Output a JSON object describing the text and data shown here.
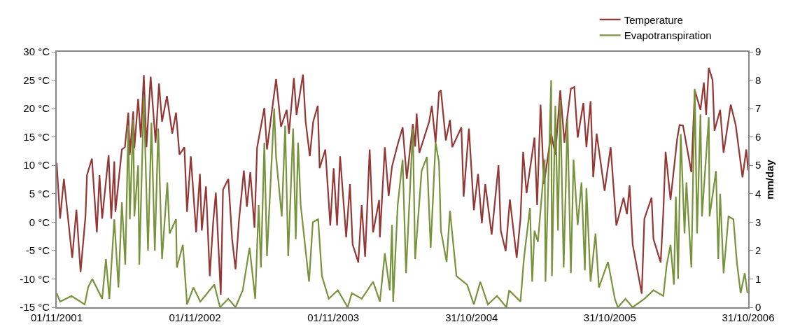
{
  "chart_data": {
    "type": "line",
    "y2label": "mm/day",
    "xlim": [
      "2001-11-01",
      "2006-10-31"
    ],
    "xticks": [
      {
        "value": "2001-11-01",
        "label": "01/11/2001"
      },
      {
        "value": "2002-11-01",
        "label": "01/11/2002"
      },
      {
        "value": "2003-11-01",
        "label": "01/11/2003"
      },
      {
        "value": "2004-10-31",
        "label": "31/10/2004"
      },
      {
        "value": "2005-10-31",
        "label": "31/10/2005"
      },
      {
        "value": "2006-10-31",
        "label": "31/10/2006"
      }
    ],
    "ylim": [
      -15,
      30
    ],
    "yticks": [
      {
        "value": -15,
        "label": "-15 °C"
      },
      {
        "value": -10,
        "label": "-10 °C"
      },
      {
        "value": -5,
        "label": "-5 °C"
      },
      {
        "value": 0,
        "label": "0 °C"
      },
      {
        "value": 5,
        "label": "5 °C"
      },
      {
        "value": 10,
        "label": "10 °C"
      },
      {
        "value": 15,
        "label": "15 °C"
      },
      {
        "value": 20,
        "label": "20 °C"
      },
      {
        "value": 25,
        "label": "25 °C"
      },
      {
        "value": 30,
        "label": "30 °C"
      }
    ],
    "y2lim": [
      0,
      9
    ],
    "y2ticks": [
      0,
      1,
      2,
      3,
      4,
      5,
      6,
      7,
      8,
      9
    ],
    "legend": "top right",
    "marker": "none",
    "line_style": "solid",
    "series": [
      {
        "name": "Temperature",
        "color": "#953735",
        "x": [
          "2001-11-01",
          "2001-11-10",
          "2001-11-20",
          "2001-12-12",
          "2001-12-23",
          "2002-01-03",
          "2002-01-16",
          "2002-01-20",
          "2002-02-02",
          "2002-02-15",
          "2002-02-22",
          "2002-03-01",
          "2002-03-18",
          "2002-03-25",
          "2002-04-02",
          "2002-04-05",
          "2002-04-22",
          "2002-04-30",
          "2002-05-09",
          "2002-05-13",
          "2002-05-22",
          "2002-05-25",
          "2002-06-04",
          "2002-06-11",
          "2002-06-19",
          "2002-06-26",
          "2002-07-07",
          "2002-07-20",
          "2002-07-29",
          "2002-08-06",
          "2002-08-19",
          "2002-09-02",
          "2002-09-12",
          "2002-09-21",
          "2002-10-04",
          "2002-10-11",
          "2002-10-21",
          "2002-11-04",
          "2002-11-14",
          "2002-11-19",
          "2002-11-30",
          "2002-12-10",
          "2002-12-19",
          "2002-12-26",
          "2003-01-08",
          "2003-01-14",
          "2003-01-28",
          "2003-02-07",
          "2003-02-16",
          "2003-02-25",
          "2003-03-10",
          "2003-03-18",
          "2003-03-27",
          "2003-04-07",
          "2003-04-14",
          "2003-05-03",
          "2003-05-10",
          "2003-06-03",
          "2003-06-16",
          "2003-07-01",
          "2003-07-07",
          "2003-07-20",
          "2003-07-27",
          "2003-08-13",
          "2003-08-20",
          "2003-08-31",
          "2003-09-09",
          "2003-09-21",
          "2003-09-26",
          "2003-10-11",
          "2003-10-24",
          "2003-11-02",
          "2003-11-11",
          "2003-11-19",
          "2003-12-05",
          "2003-12-15",
          "2003-12-22",
          "2004-01-06",
          "2004-01-15",
          "2004-01-24",
          "2004-02-05",
          "2004-02-14",
          "2004-03-01",
          "2004-03-03",
          "2004-03-16",
          "2004-03-26",
          "2004-04-04",
          "2004-04-19",
          "2004-05-02",
          "2004-05-13",
          "2004-05-29",
          "2004-06-04",
          "2004-06-08",
          "2004-06-15",
          "2004-07-11",
          "2004-07-18",
          "2004-07-28",
          "2004-08-06",
          "2004-08-11",
          "2004-08-24",
          "2004-09-04",
          "2004-09-10",
          "2004-10-04",
          "2004-10-10",
          "2004-10-24",
          "2004-11-06",
          "2004-11-17",
          "2004-11-27",
          "2004-12-06",
          "2004-12-23",
          "2005-01-10",
          "2005-01-16",
          "2005-01-29",
          "2005-02-09",
          "2005-02-27",
          "2005-03-09",
          "2005-03-16",
          "2005-03-25",
          "2005-04-15",
          "2005-04-22",
          "2005-05-01",
          "2005-05-10",
          "2005-05-29",
          "2005-06-09",
          "2005-06-22",
          "2005-07-03",
          "2005-07-09",
          "2005-07-20",
          "2005-07-29",
          "2005-08-07",
          "2005-08-22",
          "2005-08-30",
          "2005-09-10",
          "2005-09-17",
          "2005-09-26",
          "2005-10-17",
          "2005-11-02",
          "2005-11-17",
          "2005-12-06",
          "2005-12-15",
          "2005-12-22",
          "2005-12-30",
          "2006-01-23",
          "2006-01-30",
          "2006-02-18",
          "2006-02-23",
          "2006-03-14",
          "2006-03-21",
          "2006-03-27",
          "2006-04-09",
          "2006-04-27",
          "2006-05-03",
          "2006-05-12",
          "2006-06-03",
          "2006-06-12",
          "2006-06-27",
          "2006-07-06",
          "2006-07-12",
          "2006-07-19",
          "2006-07-29",
          "2006-08-03",
          "2006-08-18",
          "2006-08-27",
          "2006-09-15",
          "2006-09-28",
          "2006-10-16",
          "2006-10-26",
          "2006-10-31"
        ],
        "values": [
          10.4,
          0.6,
          7.6,
          -6.3,
          2.2,
          -8.8,
          1,
          8.3,
          11.2,
          -1.8,
          8.3,
          0.6,
          11.8,
          0.6,
          10.7,
          1.8,
          12.8,
          13.2,
          19.3,
          11.9,
          19.5,
          13,
          21.7,
          14.9,
          25.9,
          13.2,
          25.6,
          14,
          24.4,
          17.7,
          22.2,
          15.6,
          19.3,
          11.9,
          13.2,
          1.8,
          11.6,
          -1.8,
          8.5,
          -1.5,
          6.3,
          -9.5,
          0,
          5.2,
          -12.8,
          5.7,
          7.6,
          -3,
          -8.3,
          0.2,
          9.1,
          2.7,
          8.8,
          -1,
          13.2,
          20.1,
          12.8,
          25.2,
          16.8,
          19.8,
          15.6,
          25.4,
          18.9,
          26,
          17.7,
          11.6,
          17.7,
          20.5,
          9.5,
          12.8,
          -0.6,
          9.5,
          -0.6,
          11.6,
          -2.7,
          6.7,
          -3.9,
          -7.1,
          3,
          -6.1,
          12.8,
          -1.8,
          3.9,
          -2.7,
          13.2,
          4.6,
          9.8,
          13.7,
          16.7,
          7.6,
          17.3,
          13.3,
          19.1,
          12.2,
          17.7,
          20.5,
          14,
          22.9,
          23.2,
          14.4,
          18,
          13.2,
          16.7,
          4.5,
          16.5,
          2.1,
          8.5,
          -0.2,
          6.7,
          -2.2,
          10,
          -1.5,
          -5.1,
          4,
          -6.3,
          0.6,
          12.4,
          5.1,
          14.9,
          3,
          20.7,
          6.7,
          15.6,
          11.9,
          23.2,
          14,
          17.6,
          23.5,
          23.8,
          14.9,
          21,
          13.2,
          21.3,
          7.9,
          15.6,
          5.5,
          13.2,
          -0.6,
          4.3,
          1.4,
          6.5,
          -3.9,
          -12.6,
          0.6,
          4.3,
          -3,
          -7.1,
          1.8,
          12.4,
          3.9,
          14.9,
          17.1,
          17,
          8.8,
          23.2,
          19.8,
          24.6,
          18.9,
          27.2,
          25,
          16.1,
          19.8,
          12.2,
          20.7,
          17.1,
          7.9,
          12.8,
          9.1
        ]
      },
      {
        "name": "Evapotranspiration",
        "color": "#77933c",
        "axis": "y2",
        "x": [
          "2001-11-01",
          "2001-11-10",
          "2001-12-10",
          "2002-01-14",
          "2002-01-23",
          "2002-02-03",
          "2002-03-01",
          "2002-03-11",
          "2002-03-20",
          "2002-04-02",
          "2002-04-13",
          "2002-04-22",
          "2002-05-01",
          "2002-05-09",
          "2002-05-13",
          "2002-05-22",
          "2002-05-25",
          "2002-06-04",
          "2002-06-07",
          "2002-06-19",
          "2002-06-30",
          "2002-07-09",
          "2002-07-18",
          "2002-07-27",
          "2002-08-06",
          "2002-08-20",
          "2002-08-26",
          "2002-09-12",
          "2002-09-14",
          "2002-09-30",
          "2002-10-11",
          "2002-10-28",
          "2002-11-15",
          "2002-12-22",
          "2003-01-06",
          "2003-01-28",
          "2003-02-16",
          "2003-03-07",
          "2003-03-25",
          "2003-04-09",
          "2003-04-18",
          "2003-04-24",
          "2003-05-03",
          "2003-05-10",
          "2003-05-29",
          "2003-06-03",
          "2003-06-18",
          "2003-06-27",
          "2003-07-05",
          "2003-07-18",
          "2003-07-25",
          "2003-07-31",
          "2003-08-07",
          "2003-08-29",
          "2003-09-08",
          "2003-09-22",
          "2003-10-02",
          "2003-10-20",
          "2003-11-13",
          "2003-12-09",
          "2003-12-20",
          "2004-01-15",
          "2004-02-14",
          "2004-03-03",
          "2004-03-16",
          "2004-03-29",
          "2004-04-04",
          "2004-04-07",
          "2004-04-19",
          "2004-05-02",
          "2004-05-11",
          "2004-05-29",
          "2004-06-04",
          "2004-06-21",
          "2004-07-05",
          "2004-07-15",
          "2004-07-28",
          "2004-08-06",
          "2004-08-11",
          "2004-08-26",
          "2004-09-04",
          "2004-09-21",
          "2004-10-19",
          "2004-11-06",
          "2004-11-23",
          "2004-12-13",
          "2005-01-06",
          "2005-01-31",
          "2005-02-07",
          "2005-03-09",
          "2005-03-18",
          "2005-04-03",
          "2005-04-09",
          "2005-04-15",
          "2005-04-24",
          "2005-05-12",
          "2005-05-14",
          "2005-05-29",
          "2005-05-31",
          "2005-06-09",
          "2005-06-16",
          "2005-06-22",
          "2005-07-01",
          "2005-07-11",
          "2005-07-20",
          "2005-07-27",
          "2005-08-07",
          "2005-08-17",
          "2005-08-26",
          "2005-08-30",
          "2005-09-10",
          "2005-09-23",
          "2005-10-02",
          "2005-10-26",
          "2005-11-13",
          "2005-11-21",
          "2005-12-11",
          "2005-12-30",
          "2006-01-30",
          "2006-02-23",
          "2006-03-21",
          "2006-03-30",
          "2006-04-09",
          "2006-04-18",
          "2006-04-23",
          "2006-04-29",
          "2006-05-06",
          "2006-05-16",
          "2006-05-21",
          "2006-06-03",
          "2006-06-12",
          "2006-06-18",
          "2006-06-27",
          "2006-07-01",
          "2006-07-19",
          "2006-07-21",
          "2006-08-07",
          "2006-08-13",
          "2006-08-18",
          "2006-08-27",
          "2006-09-09",
          "2006-09-22",
          "2006-10-01",
          "2006-10-11",
          "2006-10-22",
          "2006-10-29"
        ],
        "values": [
          0.5,
          0.2,
          0.4,
          0.1,
          0.7,
          1,
          0.3,
          1.7,
          0.3,
          3.1,
          0.7,
          3.7,
          1.5,
          6.4,
          3.1,
          6.6,
          3.2,
          5,
          1.5,
          7.4,
          2,
          6.5,
          2,
          6.3,
          1.7,
          4.4,
          2.6,
          3.1,
          1.4,
          2.2,
          0.1,
          0.7,
          0.2,
          0.8,
          0,
          0.3,
          0,
          0.6,
          2.1,
          0.3,
          3.6,
          1.4,
          5.8,
          1.8,
          7,
          5.3,
          3.2,
          6.4,
          1.8,
          6.3,
          2.4,
          5.8,
          3.6,
          0.9,
          3,
          3.1,
          1.1,
          0.3,
          0.6,
          0,
          0.5,
          0.3,
          0.9,
          0.2,
          1.9,
          0.6,
          2.9,
          0.2,
          3.6,
          5.2,
          1.2,
          6.3,
          1.7,
          4.8,
          5.3,
          2.1,
          5.8,
          5.1,
          2.7,
          1.6,
          3.4,
          1.1,
          0.8,
          0.1,
          0.9,
          0.1,
          0.4,
          0,
          0.6,
          0.2,
          1.7,
          3.5,
          0.9,
          2.7,
          2.3,
          5.2,
          0.9,
          8,
          1.1,
          7.1,
          2.7,
          7.3,
          1.4,
          6.6,
          1.2,
          5.2,
          2.9,
          4.4,
          1.3,
          4.2,
          0.9,
          2.6,
          0.7,
          1.6,
          0.3,
          0,
          0.3,
          0,
          0.3,
          0.6,
          0.4,
          1.5,
          2.2,
          0.8,
          3.9,
          1,
          6.1,
          2.6,
          4.4,
          1.4,
          7.7,
          2.6,
          6.8,
          3.2,
          6.7,
          3.2,
          4.8,
          1.7,
          4,
          1.2,
          3.2,
          3.1,
          1.6,
          0.5,
          1.2,
          0.5
        ]
      }
    ]
  }
}
